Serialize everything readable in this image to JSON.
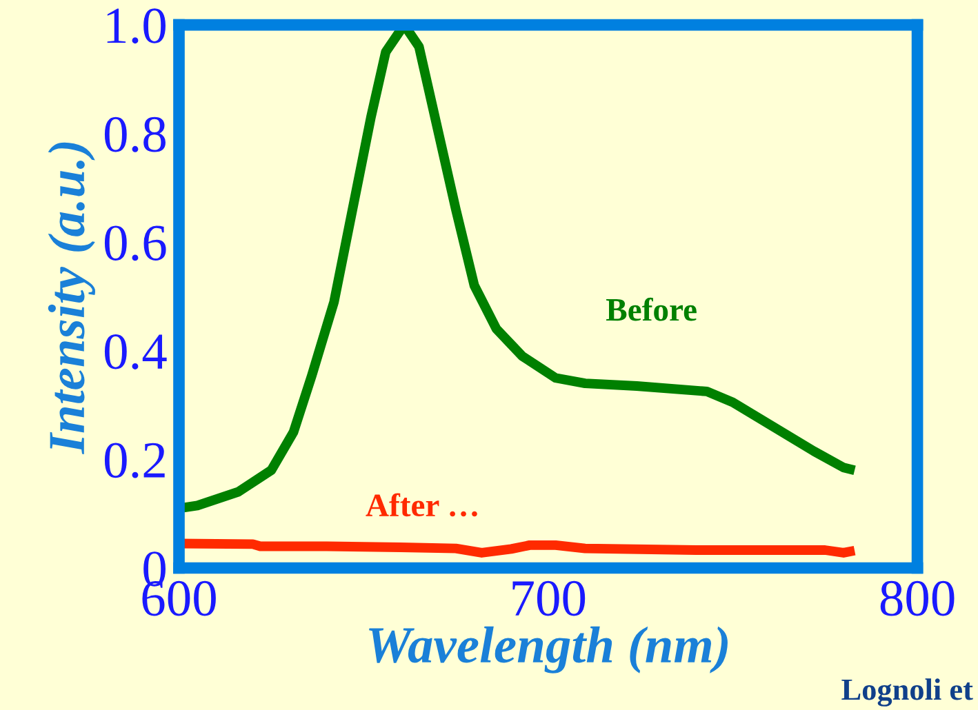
{
  "chart_data": {
    "type": "line",
    "xlabel": "Wavelength (nm)",
    "ylabel": "Intensity (a.u.)",
    "xlim": [
      600,
      800
    ],
    "xticks": [
      600,
      700,
      800
    ],
    "ylim": [
      0,
      1.0
    ],
    "yticks": [
      0,
      {
        "value": 0.2,
        "label": "0.2"
      },
      {
        "value": 0.4,
        "label": "0.4"
      },
      {
        "value": 0.6,
        "label": "0.6"
      },
      {
        "value": 0.8,
        "label": "0.8"
      },
      {
        "value": 1.0,
        "label": "1.0"
      }
    ],
    "grid": false,
    "legend": false,
    "series": [
      {
        "name": "Before",
        "color": "#008000",
        "x": [
          600,
          605,
          616,
          625,
          631,
          636,
          642,
          647,
          652,
          656,
          661,
          665,
          670,
          675,
          680,
          686,
          693,
          702,
          710,
          724,
          743,
          750,
          761,
          772,
          780,
          783
        ],
        "values": [
          0.11,
          0.115,
          0.14,
          0.18,
          0.25,
          0.355,
          0.49,
          0.66,
          0.83,
          0.95,
          1.0,
          0.96,
          0.81,
          0.66,
          0.52,
          0.44,
          0.39,
          0.35,
          0.34,
          0.335,
          0.325,
          0.305,
          0.26,
          0.215,
          0.185,
          0.18
        ]
      },
      {
        "name": "After …",
        "color": "#ff2a00",
        "x": [
          600,
          620,
          622,
          640,
          660,
          675,
          682,
          690,
          695,
          702,
          710,
          740,
          775,
          780,
          783
        ],
        "values": [
          0.045,
          0.044,
          0.04,
          0.04,
          0.038,
          0.036,
          0.028,
          0.035,
          0.042,
          0.042,
          0.036,
          0.033,
          0.033,
          0.028,
          0.032
        ]
      }
    ],
    "annotations": [
      "Lognoli et"
    ]
  }
}
